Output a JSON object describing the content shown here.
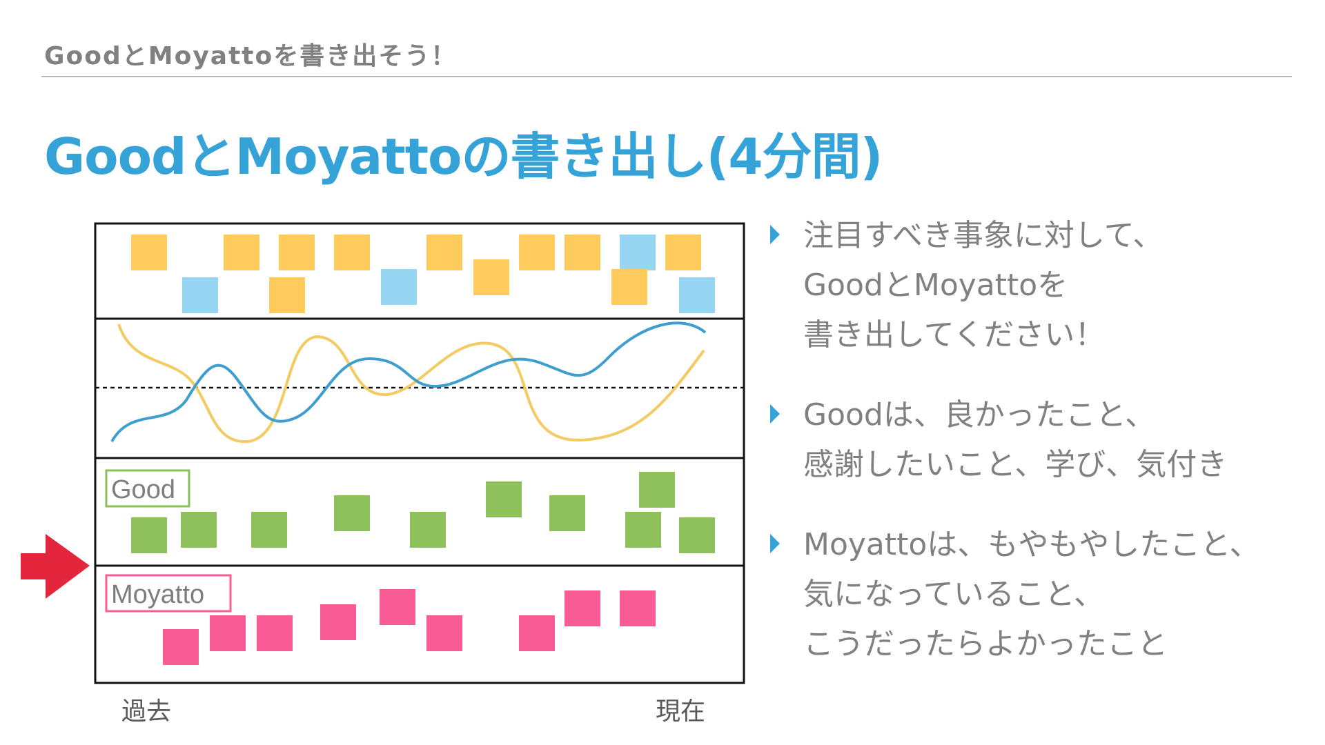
{
  "header": {
    "text": "GoodとMoyattoを書き出そう！"
  },
  "title": {
    "text": "GoodとMoyattoの書き出し(4分間)"
  },
  "diagram": {
    "good_label": "Good",
    "moyatto_label": "Moyatto",
    "time_past": "過去",
    "time_present": "現在",
    "colors": {
      "good": "#8dc05a",
      "moyatto": "#f95b94",
      "mood_yellow": "#fecb5c",
      "mood_blue": "#96d6f3",
      "line_blue": "#3e9ecd",
      "line_yellow": "#f3cb62",
      "arrow": "#e4263c"
    }
  },
  "bullets": [
    {
      "lines": [
        "注目すべき事象に対して、",
        "GoodとMoyattoを",
        "書き出してください！"
      ]
    },
    {
      "lines": [
        "Goodは、良かったこと、",
        "感謝したいこと、学び、気付き"
      ]
    },
    {
      "lines": [
        "Moyattoは、もやもやしたこと、",
        "気になっていること、",
        "こうだったらよかったこと"
      ]
    }
  ]
}
